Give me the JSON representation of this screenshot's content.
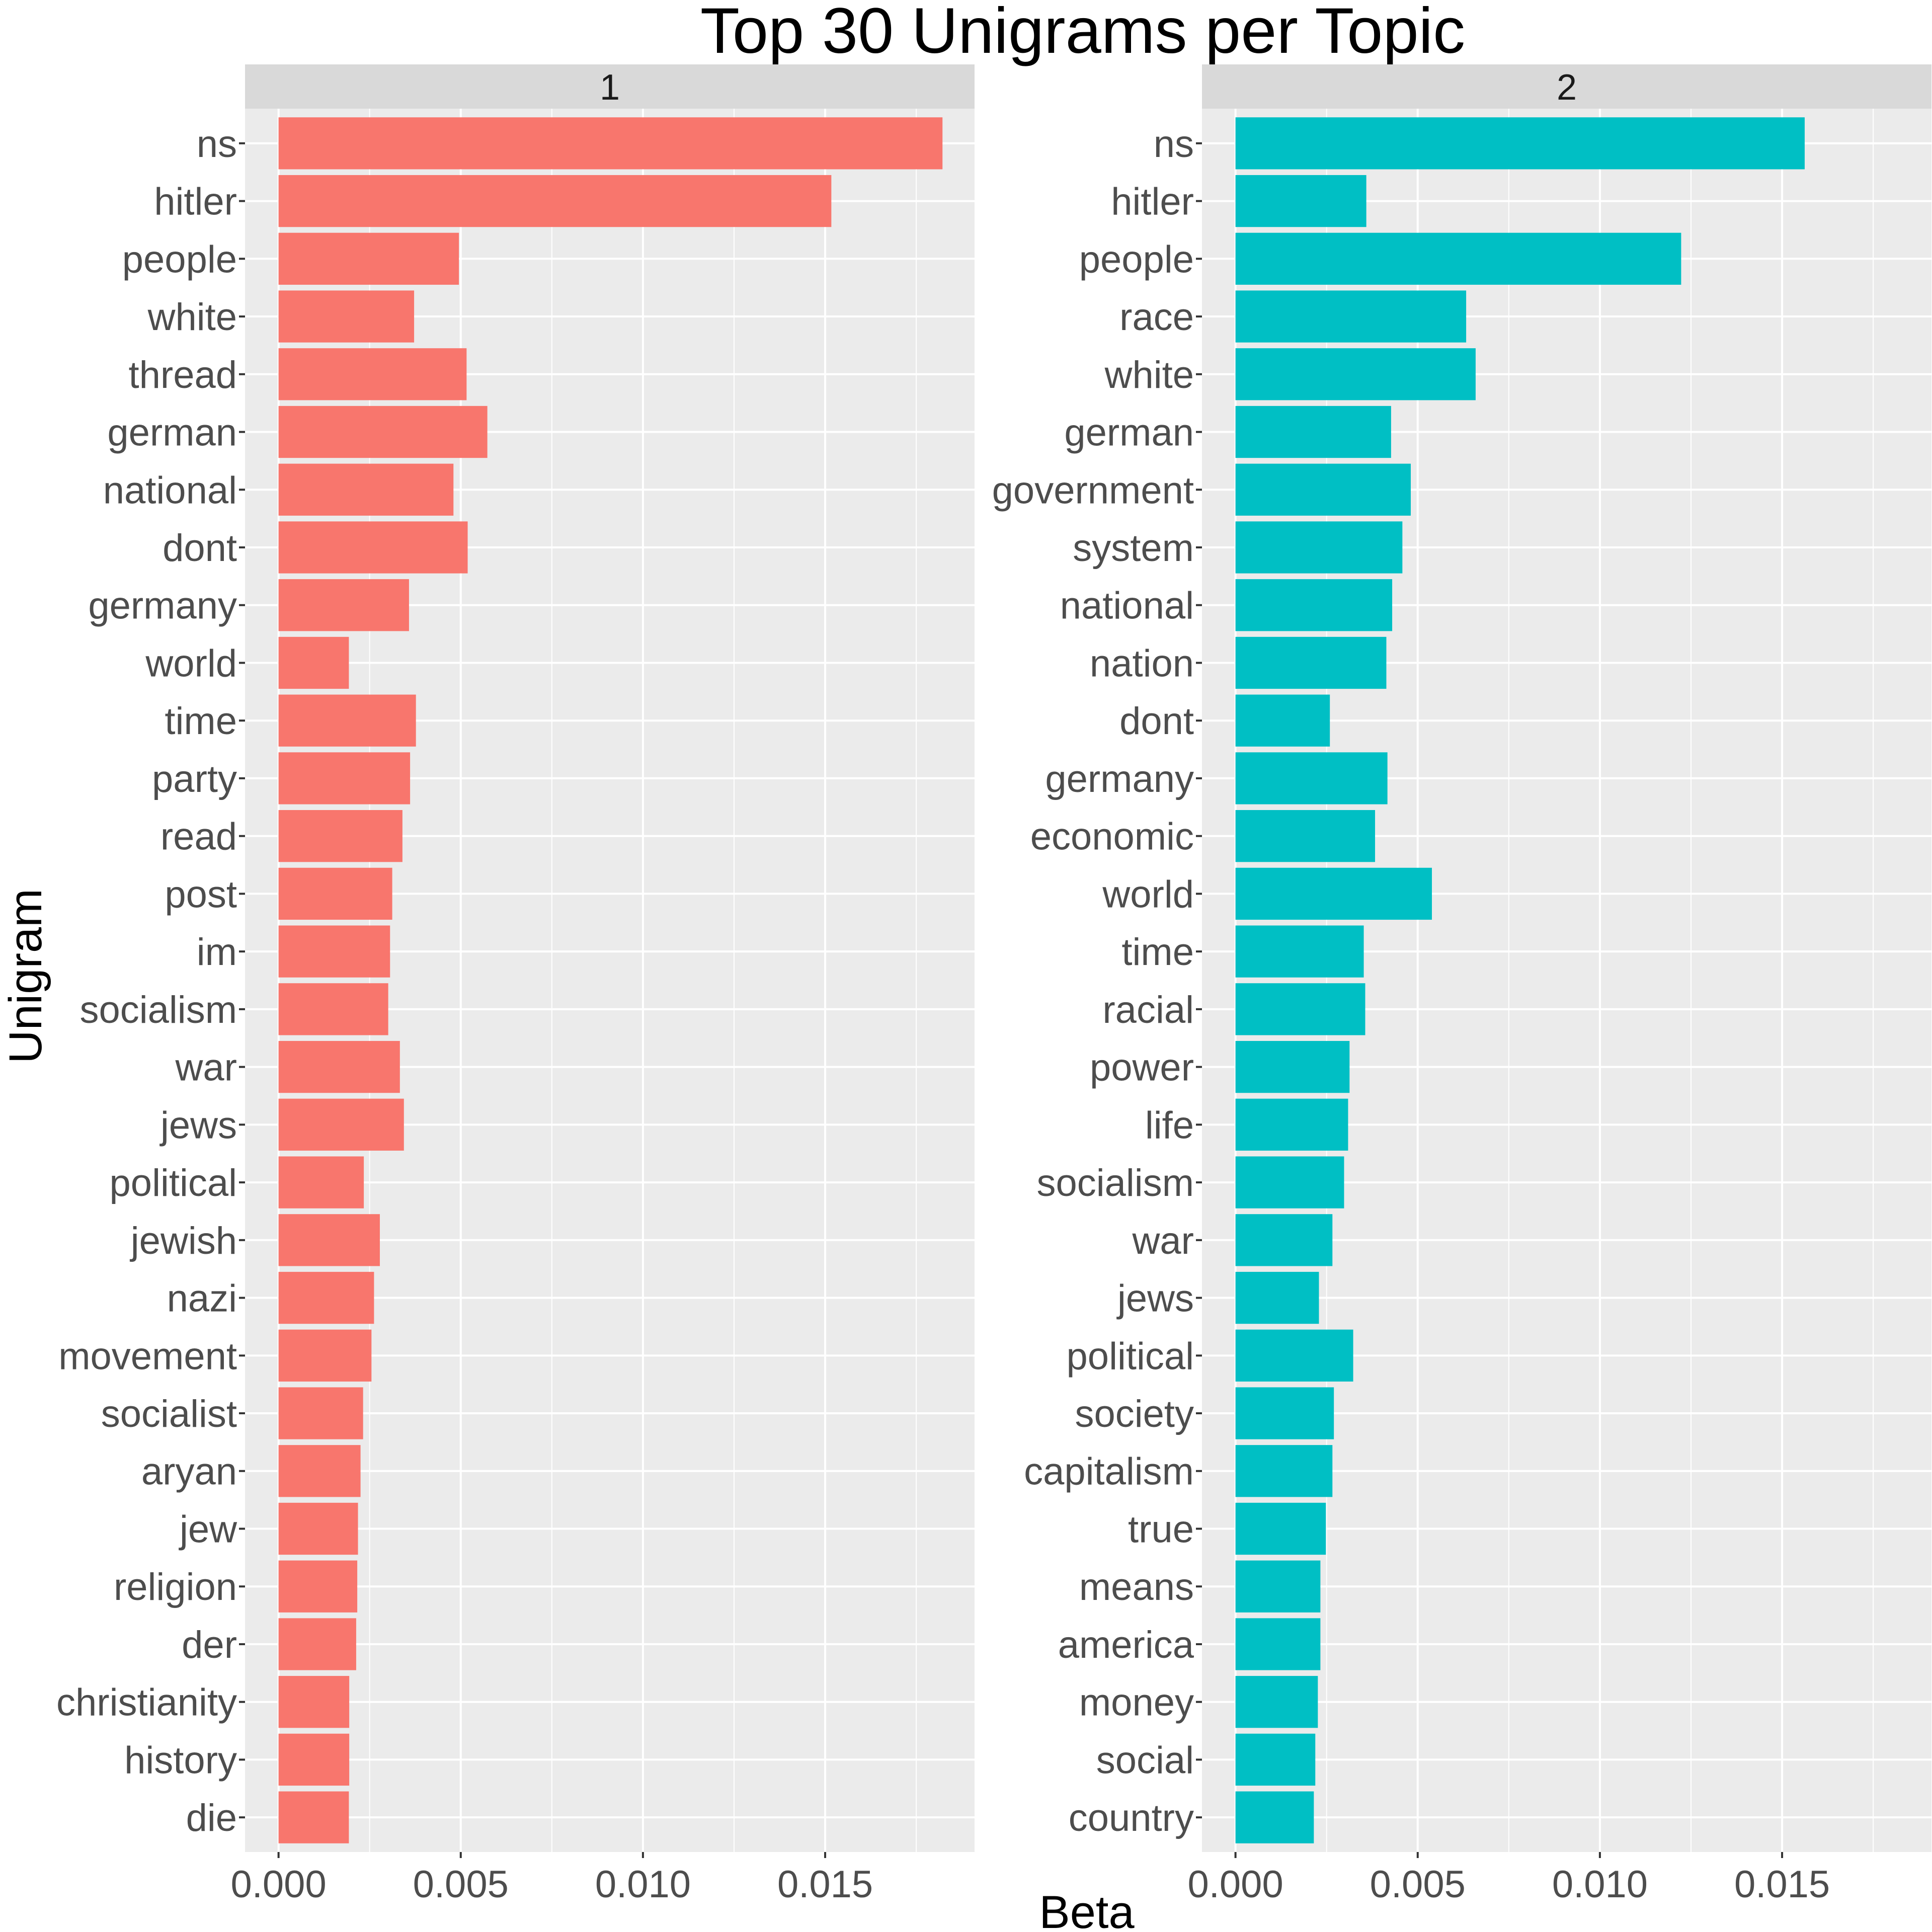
{
  "chart_data": {
    "type": "bar",
    "orientation": "horizontal",
    "title": "Top 30 Unigrams per Topic",
    "xlabel": "Beta",
    "ylabel": "Unigram",
    "xlim": [
      -0.00092,
      0.0191
    ],
    "xticks": [
      0.0,
      0.005,
      0.01,
      0.015
    ],
    "xtick_labels": [
      "0.000",
      "0.005",
      "0.010",
      "0.015"
    ],
    "grid": true,
    "legend": "none",
    "facets": [
      {
        "label": "1",
        "color": "#F8766D",
        "categories": [
          "ns",
          "hitler",
          "people",
          "white",
          "thread",
          "german",
          "national",
          "dont",
          "germany",
          "world",
          "time",
          "party",
          "read",
          "post",
          "im",
          "socialism",
          "war",
          "jews",
          "political",
          "jewish",
          "nazi",
          "movement",
          "socialist",
          "aryan",
          "jew",
          "religion",
          "der",
          "christianity",
          "history",
          "die"
        ],
        "values": [
          0.01822,
          0.01517,
          0.00495,
          0.00372,
          0.00516,
          0.00573,
          0.0048,
          0.00519,
          0.00358,
          0.00193,
          0.00377,
          0.00361,
          0.0034,
          0.00312,
          0.00306,
          0.00301,
          0.00333,
          0.00344,
          0.00234,
          0.00278,
          0.00262,
          0.00255,
          0.00232,
          0.00225,
          0.00218,
          0.00216,
          0.00213,
          0.00194,
          0.00194,
          0.00193
        ]
      },
      {
        "label": "2",
        "color": "#00BFC4",
        "categories": [
          "ns",
          "hitler",
          "people",
          "race",
          "white",
          "german",
          "government",
          "system",
          "national",
          "nation",
          "dont",
          "germany",
          "economic",
          "world",
          "time",
          "racial",
          "power",
          "life",
          "socialism",
          "war",
          "jews",
          "political",
          "society",
          "capitalism",
          "true",
          "means",
          "america",
          "money",
          "social",
          "country"
        ],
        "values": [
          0.01562,
          0.00359,
          0.01223,
          0.00633,
          0.00659,
          0.00427,
          0.00481,
          0.00458,
          0.0043,
          0.00414,
          0.00259,
          0.00417,
          0.00383,
          0.00539,
          0.00352,
          0.00356,
          0.00313,
          0.00309,
          0.00298,
          0.00266,
          0.00229,
          0.00323,
          0.0027,
          0.00266,
          0.00248,
          0.00233,
          0.00233,
          0.00226,
          0.00219,
          0.00215
        ]
      }
    ]
  }
}
